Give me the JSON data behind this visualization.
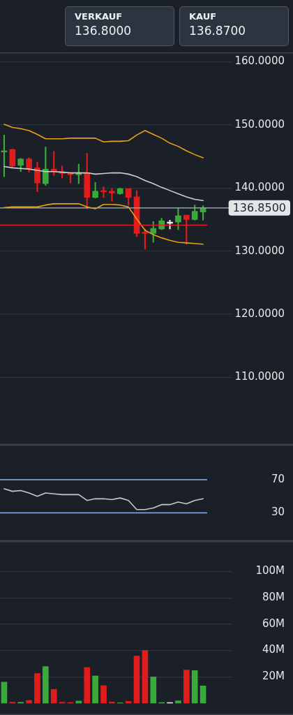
{
  "chart_data": [
    {
      "type": "other",
      "annotations": [
        "VERKAUF",
        "136.8000",
        "KAUF",
        "136.8700"
      ]
    },
    {
      "type": "candlestick",
      "categories": [
        null,
        null,
        null,
        null,
        null,
        null,
        null,
        null,
        null,
        null,
        null,
        null,
        null,
        null,
        null,
        null,
        null,
        null,
        null,
        null,
        null,
        null,
        null,
        null,
        null
      ],
      "ohlc": [
        [
          145.7,
          148.4,
          141.8,
          145.9
        ],
        [
          146.1,
          146.2,
          143.3,
          143.5
        ],
        [
          143.6,
          144.7,
          142.6,
          144.6
        ],
        [
          144.6,
          144.8,
          142.5,
          143.1
        ],
        [
          143.2,
          144.1,
          139.4,
          140.8
        ],
        [
          140.7,
          146.5,
          140.4,
          143.0
        ],
        [
          143.0,
          145.8,
          142.0,
          142.6
        ],
        [
          142.6,
          143.5,
          141.6,
          142.3
        ],
        [
          142.4,
          142.4,
          140.8,
          142.1
        ],
        [
          142.1,
          143.8,
          140.7,
          142.3
        ],
        [
          142.4,
          145.5,
          136.7,
          138.5
        ],
        [
          138.5,
          140.9,
          138.4,
          139.5
        ],
        [
          139.6,
          140.2,
          138.5,
          139.4
        ],
        [
          139.5,
          139.9,
          137.9,
          139.2
        ],
        [
          139.1,
          140.0,
          139.0,
          139.9
        ],
        [
          139.9,
          139.9,
          137.3,
          138.5
        ],
        [
          138.6,
          139.6,
          132.3,
          132.8
        ],
        [
          133.0,
          133.5,
          130.3,
          132.8
        ],
        [
          132.8,
          134.7,
          131.4,
          133.6
        ],
        [
          133.5,
          135.2,
          133.4,
          134.8
        ],
        [
          134.4,
          134.9,
          133.5,
          134.6
        ],
        [
          134.6,
          136.8,
          133.4,
          135.6
        ],
        [
          135.7,
          135.7,
          131.1,
          135.0
        ],
        [
          135.0,
          137.3,
          134.9,
          136.3
        ],
        [
          136.2,
          137.2,
          134.9,
          136.8
        ]
      ],
      "colors": [
        "#3aaa3a",
        "#e01c1c",
        "#3aaa3a",
        "#e01c1c",
        "#e01c1c",
        "#3aaa3a",
        "#e01c1c",
        "#e01c1c",
        "#e01c1c",
        "#3aaa3a",
        "#e01c1c",
        "#3aaa3a",
        "#e01c1c",
        "#e01c1c",
        "#3aaa3a",
        "#e01c1c",
        "#e01c1c",
        "#e01c1c",
        "#3aaa3a",
        "#3aaa3a",
        "#e8e8e8",
        "#3aaa3a",
        "#e01c1c",
        "#3aaa3a",
        "#3aaa3a"
      ],
      "series": [
        {
          "type": "line",
          "color": "#e8a21a",
          "values": [
            150.1,
            149.6,
            149.4,
            149.1,
            148.5,
            147.8,
            147.8,
            147.8,
            147.9,
            147.9,
            147.9,
            147.9,
            147.3,
            147.4,
            147.4,
            147.5,
            148.4,
            149.1,
            148.5,
            147.9,
            147.1,
            146.6,
            145.9,
            145.3,
            144.8
          ]
        },
        {
          "type": "line",
          "color": "#cfcfcf",
          "values": [
            143.4,
            143.2,
            143.1,
            143.0,
            142.8,
            142.6,
            142.6,
            142.5,
            142.4,
            142.4,
            142.4,
            142.2,
            142.3,
            142.4,
            142.4,
            142.2,
            141.8,
            141.2,
            140.7,
            140.1,
            139.6,
            139.1,
            138.6,
            138.2,
            138.0
          ]
        },
        {
          "type": "line",
          "color": "#e8a21a",
          "values": [
            136.9,
            137.0,
            137.0,
            137.0,
            137.0,
            137.3,
            137.5,
            137.5,
            137.5,
            137.5,
            137.0,
            136.7,
            137.4,
            137.4,
            137.3,
            137.0,
            135.1,
            133.3,
            132.6,
            132.1,
            131.7,
            131.4,
            131.3,
            131.2,
            131.1
          ]
        }
      ],
      "marker": "none",
      "line_style": "solid",
      "ylim": [
        99.3,
        161.5
      ],
      "yticks": [
        {
          "value": 110,
          "label": "110.0000"
        },
        {
          "value": 120,
          "label": "120.0000"
        },
        {
          "value": 130,
          "label": "130.0000"
        },
        {
          "value": 140,
          "label": "140.0000"
        },
        {
          "value": 150,
          "label": "150.0000"
        },
        {
          "value": 160,
          "label": "160.0000"
        }
      ],
      "grid": "y",
      "tick_labels": "y",
      "ref_lines": [
        {
          "axis": "y",
          "value": 136.85,
          "label": "136.8500",
          "color": "#9a9ea5"
        },
        {
          "axis": "y",
          "value": 134.1,
          "color": "#e01c1c"
        }
      ]
    },
    {
      "type": "line",
      "categories": [
        null,
        null,
        null,
        null,
        null,
        null,
        null,
        null,
        null,
        null,
        null,
        null,
        null,
        null,
        null,
        null,
        null,
        null,
        null,
        null,
        null,
        null,
        null,
        null,
        null
      ],
      "series": [
        {
          "color": "#c8c8c8",
          "values": [
            59,
            56,
            57,
            54,
            50,
            54,
            53,
            52,
            52,
            52,
            45,
            47,
            47,
            46,
            48,
            45,
            34,
            34,
            36,
            40,
            40,
            43,
            41,
            45,
            47
          ]
        }
      ],
      "marker": "none",
      "line_style": "solid",
      "ylim": [
        -4,
        112
      ],
      "yticks": [
        30,
        70
      ],
      "tick_labels": "y",
      "ref_lines": [
        {
          "axis": "y",
          "value": 70,
          "color": "#8db4e2"
        },
        {
          "axis": "y",
          "value": 30,
          "color": "#8db4e2"
        }
      ]
    },
    {
      "type": "bar",
      "categories": [
        null,
        null,
        null,
        null,
        null,
        null,
        null,
        null,
        null,
        null,
        null,
        null,
        null,
        null,
        null,
        null,
        null,
        null,
        null,
        null,
        null,
        null,
        null,
        null,
        null
      ],
      "values": [
        16,
        0.7,
        0.7,
        2.1,
        22.5,
        27.8,
        10.5,
        0.7,
        0.5,
        1.6,
        27.1,
        20.7,
        13.3,
        0.9,
        0.3,
        1.4,
        35.8,
        40.1,
        19.9,
        0.5,
        0.5,
        1.8,
        25.2,
        24.8,
        13.1
      ],
      "colors": [
        "#3aaa3a",
        "#e01c1c",
        "#3aaa3a",
        "#e01c1c",
        "#e01c1c",
        "#3aaa3a",
        "#e01c1c",
        "#e01c1c",
        "#e01c1c",
        "#3aaa3a",
        "#e01c1c",
        "#3aaa3a",
        "#e01c1c",
        "#e01c1c",
        "#3aaa3a",
        "#e01c1c",
        "#e01c1c",
        "#e01c1c",
        "#3aaa3a",
        "#3aaa3a",
        "#e8e8e8",
        "#3aaa3a",
        "#e01c1c",
        "#3aaa3a",
        "#3aaa3a"
      ],
      "ylim": [
        -9,
        123
      ],
      "yticks": [
        {
          "value": 20,
          "label": "20M"
        },
        {
          "value": 40,
          "label": "40M"
        },
        {
          "value": 60,
          "label": "60M"
        },
        {
          "value": 80,
          "label": "80M"
        },
        {
          "value": 100,
          "label": "100M"
        }
      ],
      "grid": "y",
      "tick_labels": "y"
    }
  ]
}
